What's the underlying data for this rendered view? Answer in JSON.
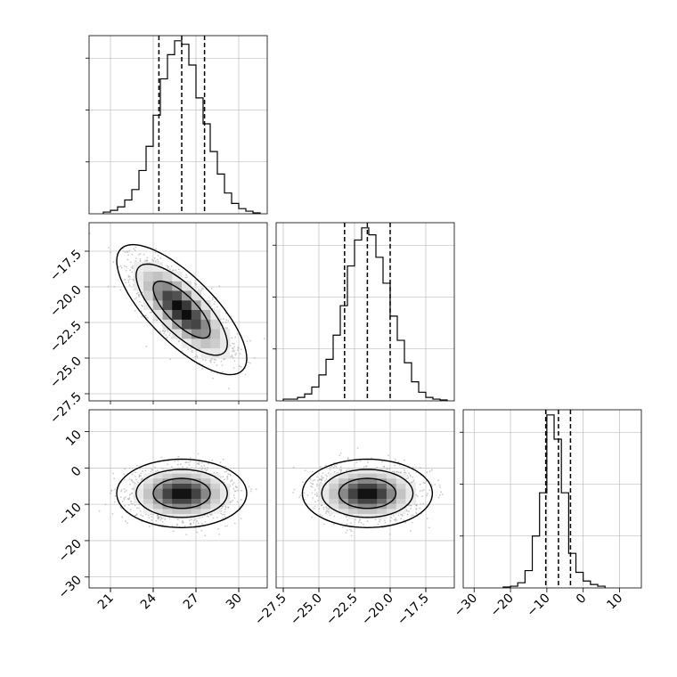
{
  "chart_data": {
    "type": "corner",
    "parameters": [
      {
        "range": [
          19.5,
          32
        ],
        "ticks": [
          21,
          24,
          27,
          30
        ],
        "tick_labels": [
          "21",
          "24",
          "27",
          "30"
        ],
        "quantiles": [
          24.4,
          26.0,
          27.6
        ]
      },
      {
        "range": [
          -28,
          -15.5
        ],
        "ticks": [
          -27.5,
          -25,
          -22.5,
          -20,
          -17.5
        ],
        "tick_labels": [
          "−27.5",
          "−25.0",
          "−22.5",
          "−20.0",
          "−17.5"
        ],
        "quantiles": [
          -23.2,
          -21.6,
          -20.0
        ]
      },
      {
        "range": [
          -33,
          16
        ],
        "ticks": [
          -30,
          -20,
          -10,
          0,
          10
        ],
        "tick_labels": [
          "−30",
          "−20",
          "−10",
          "0",
          "10"
        ],
        "quantiles": [
          -10.3,
          -6.8,
          -3.5
        ]
      }
    ],
    "histograms": [
      {
        "param": 0,
        "ylim": [
          0,
          1.03
        ],
        "bin_width": 0.5,
        "bins_start": 20.5,
        "values": [
          0.01,
          0.02,
          0.04,
          0.08,
          0.14,
          0.25,
          0.39,
          0.57,
          0.78,
          0.92,
          1.0,
          0.98,
          0.86,
          0.67,
          0.52,
          0.36,
          0.23,
          0.12,
          0.06,
          0.03,
          0.015,
          0.005
        ]
      },
      {
        "param": 1,
        "ylim": [
          0,
          1.03
        ],
        "bin_width": 0.5,
        "bins_start": -27.5,
        "values": [
          0.01,
          0.01,
          0.02,
          0.04,
          0.08,
          0.15,
          0.24,
          0.38,
          0.55,
          0.78,
          0.93,
          1.0,
          0.96,
          0.83,
          0.68,
          0.49,
          0.35,
          0.22,
          0.11,
          0.05,
          0.02,
          0.01,
          0.005
        ]
      },
      {
        "param": 2,
        "ylim": [
          0,
          1.03
        ],
        "bin_width": 2,
        "bins_start": -22,
        "values": [
          0.005,
          0.01,
          0.03,
          0.1,
          0.3,
          0.55,
          1.0,
          0.86,
          0.55,
          0.2,
          0.09,
          0.04,
          0.02,
          0.01
        ]
      }
    ],
    "joint": [
      {
        "x_param": 0,
        "y_param": 1,
        "center": [
          26.0,
          -21.6
        ],
        "sx": 1.6,
        "sy": 1.6,
        "rho": -0.75,
        "contours": [
          [
            0.5,
            1.25
          ],
          [
            1.0,
            2.0
          ],
          [
            1.5,
            2.85
          ]
        ]
      },
      {
        "x_param": 0,
        "y_param": 2,
        "center": [
          26.0,
          -7.0
        ],
        "sx": 1.6,
        "sy": 3.3,
        "rho": 0.0,
        "contours": [
          [
            0.5,
            1.25
          ],
          [
            1.0,
            2.0
          ],
          [
            1.5,
            2.85
          ]
        ]
      },
      {
        "x_param": 1,
        "y_param": 2,
        "center": [
          -21.6,
          -7.0
        ],
        "sx": 1.6,
        "sy": 3.3,
        "rho": 0.0,
        "contours": [
          [
            0.5,
            1.25
          ],
          [
            1.0,
            2.0
          ],
          [
            1.5,
            2.85
          ]
        ]
      }
    ],
    "grid": true,
    "line_color": "#000000",
    "scatter_color": "#9e9e9e",
    "density_colormap": [
      "#ffffff",
      "#000000"
    ]
  }
}
